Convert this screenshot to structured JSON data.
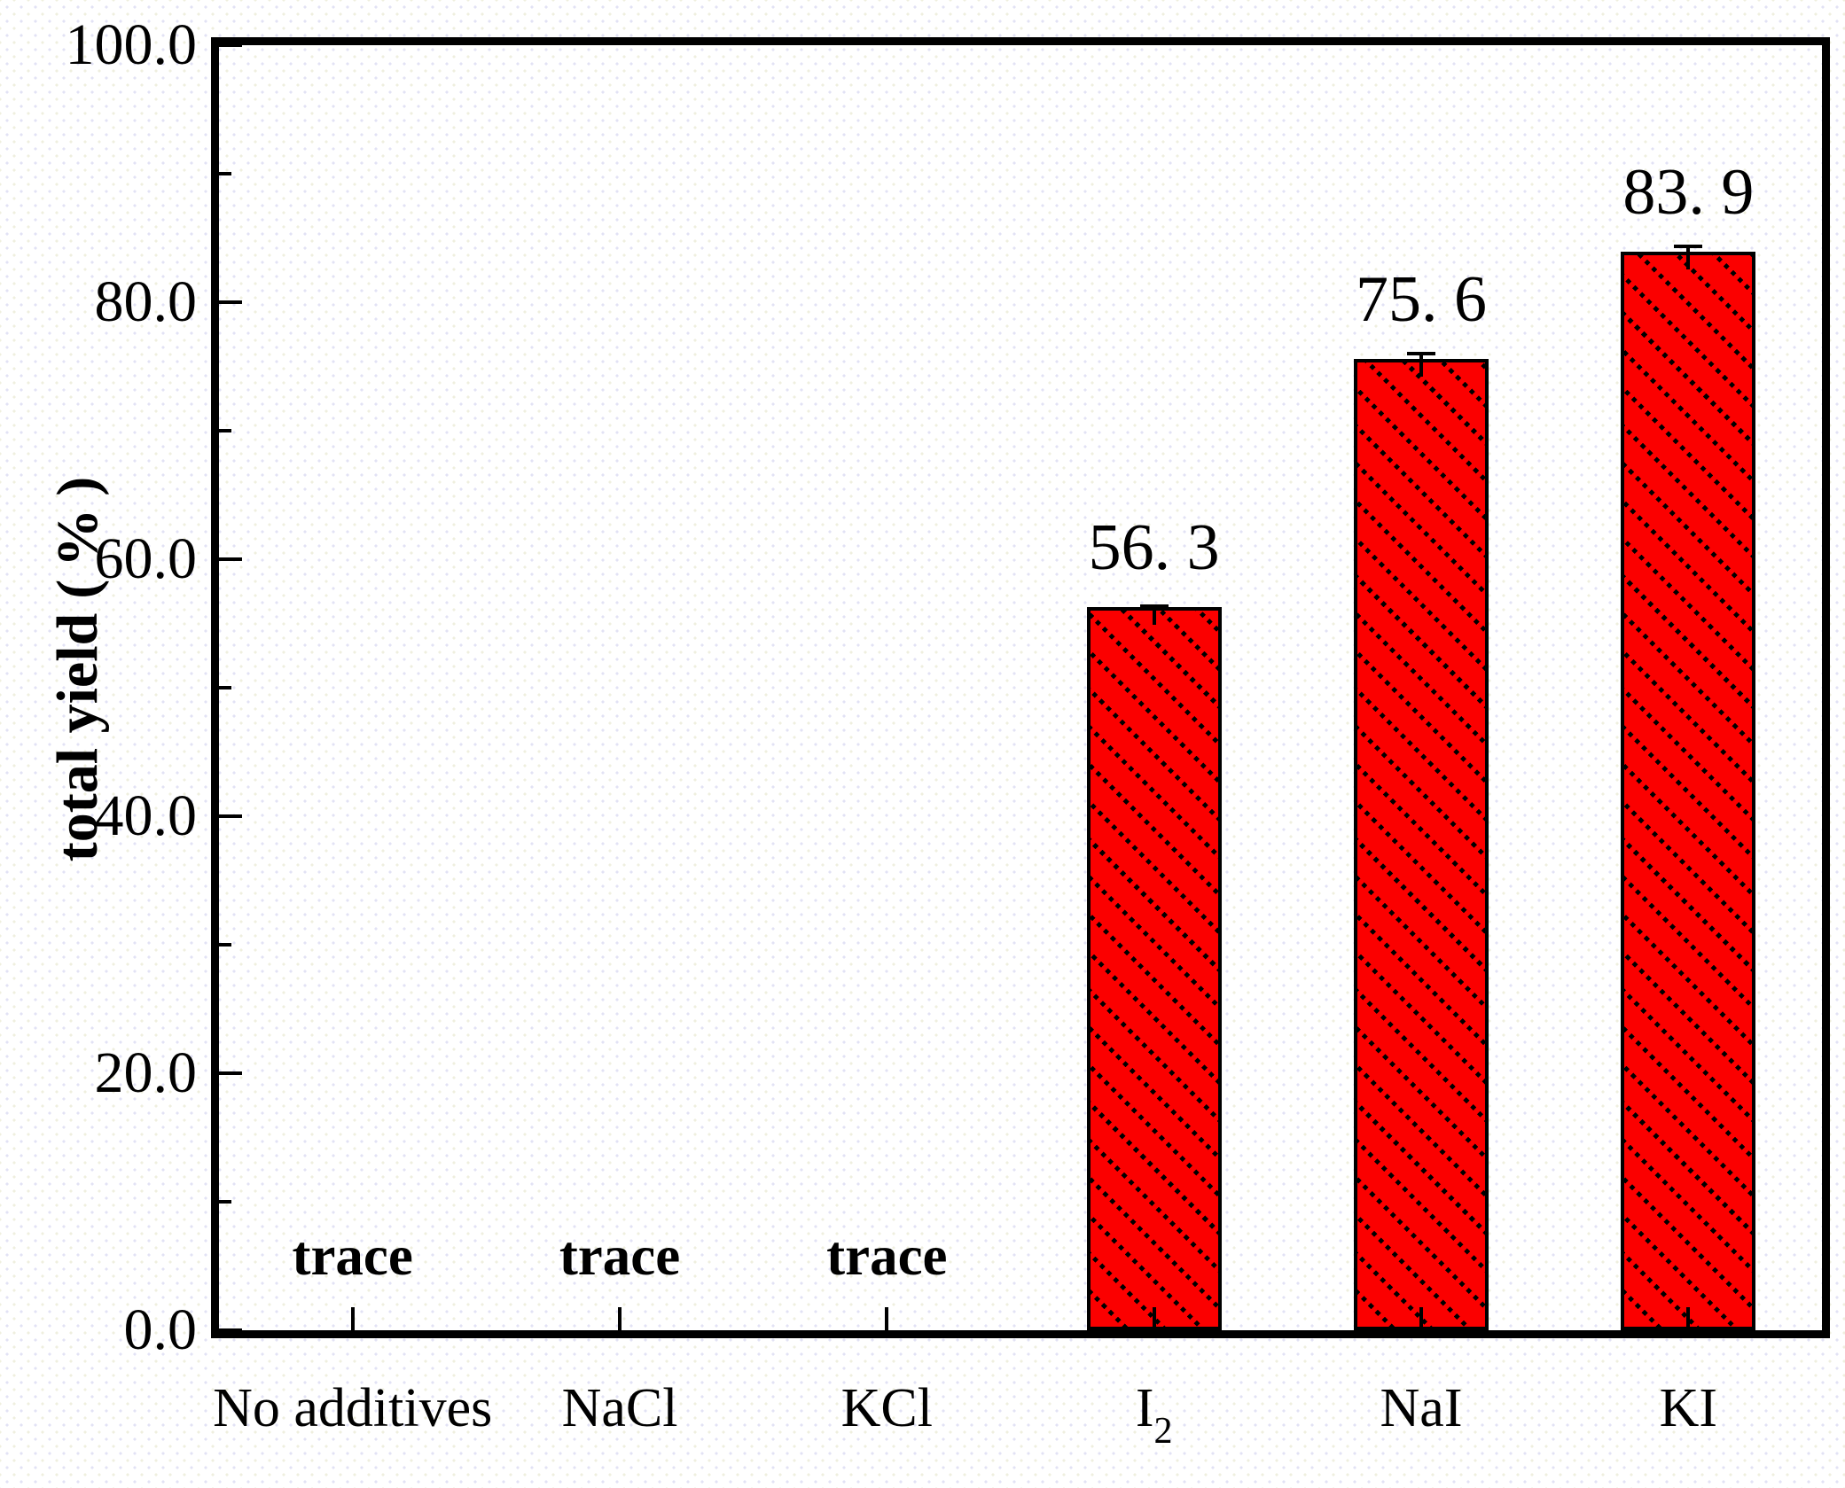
{
  "figure": {
    "background": "#ffffff",
    "frame_color": "#000000"
  },
  "chart_data": {
    "type": "bar",
    "title": "",
    "xlabel": "",
    "ylabel": "total yield（%）",
    "ylabel_render": {
      "main": "total yield",
      "unit": "(%)"
    },
    "ylim": [
      0,
      100
    ],
    "y_major_ticks": [
      0,
      20,
      40,
      60,
      80,
      100
    ],
    "y_tick_labels": [
      "0.0",
      "20.0",
      "40.0",
      "60.0",
      "80.0",
      "100.0"
    ],
    "y_minor_ticks": [
      10,
      30,
      50,
      70,
      90
    ],
    "grid": false,
    "legend": null,
    "bar_color": "#fb0000",
    "hatch": "black dashed diagonal lines (backslash direction) on red fill",
    "categories": [
      {
        "label": "No additives",
        "sub": ""
      },
      {
        "label": "NaCl",
        "sub": ""
      },
      {
        "label": "KCl",
        "sub": ""
      },
      {
        "label": "I",
        "sub": "2"
      },
      {
        "label": "NaI",
        "sub": ""
      },
      {
        "label": "KI",
        "sub": ""
      }
    ],
    "values": [
      null,
      null,
      null,
      56.3,
      75.6,
      83.9
    ],
    "errors": [
      null,
      null,
      null,
      0.2,
      0.55,
      0.6
    ],
    "value_labels": [
      "trace",
      "trace",
      "trace",
      "56. 3",
      "75. 6",
      "83. 9"
    ]
  }
}
